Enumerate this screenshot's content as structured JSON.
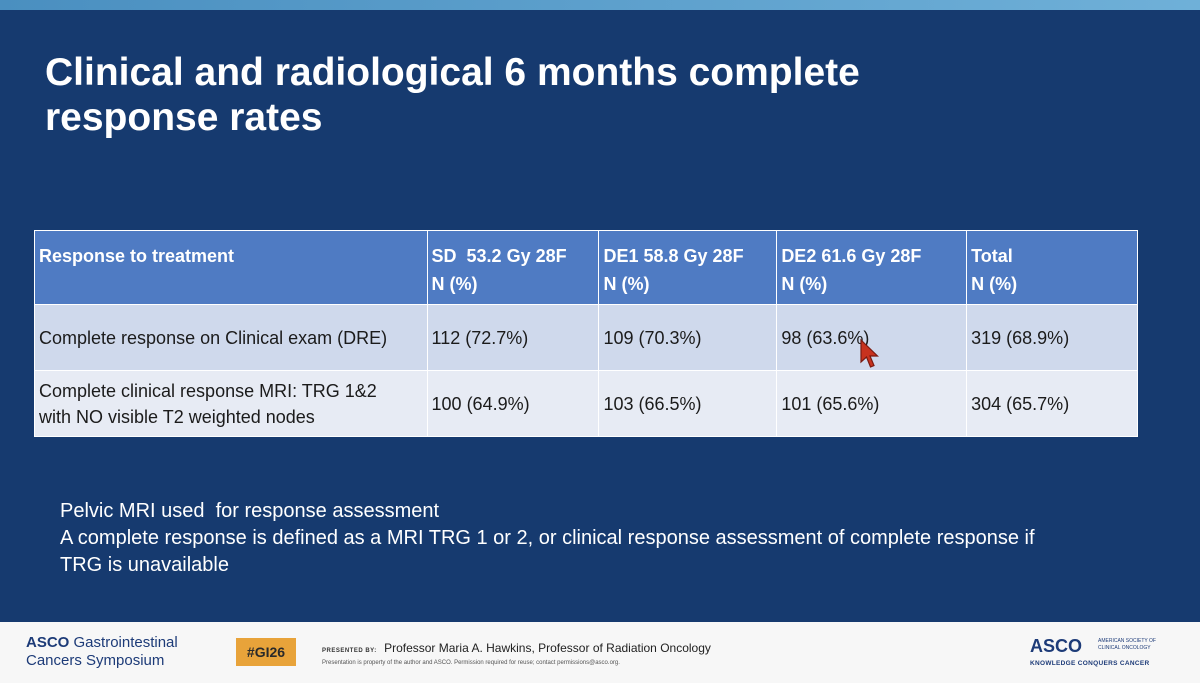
{
  "slide": {
    "title_line1": "Clinical and radiological 6 months complete",
    "title_line2": "response rates"
  },
  "table": {
    "headers": [
      [
        "Response to treatment",
        ""
      ],
      [
        "SD  53.2 Gy 28F",
        "N (%)"
      ],
      [
        "DE1 58.8 Gy 28F",
        "N (%)"
      ],
      [
        "DE2 61.6 Gy 28F",
        "N (%)"
      ],
      [
        "Total",
        "N (%)"
      ]
    ],
    "rows": [
      {
        "label_line1": "Complete response on Clinical exam (DRE)",
        "label_line2": "",
        "cells": [
          "112 (72.7%)",
          "109 (70.3%)",
          "98 (63.6%)",
          "319 (68.9%)"
        ]
      },
      {
        "label_line1": "Complete clinical response MRI: TRG 1&2",
        "label_line2": "with NO visible T2 weighted nodes",
        "cells": [
          "100 (64.9%)",
          "103 (66.5%)",
          "101 (65.6%)",
          "304 (65.7%)"
        ]
      }
    ]
  },
  "notes": {
    "line1": "Pelvic MRI used  for response assessment",
    "line2": "A complete response is defined as a MRI TRG 1 or 2, or clinical response assessment of complete response if",
    "line3": "TRG is unavailable"
  },
  "footer": {
    "logo_left_brand": "ASCO",
    "logo_left_line1": "Gastrointestinal",
    "logo_left_line2": "Cancers Symposium",
    "hashtag": "#GI26",
    "presented_label": "PRESENTED BY:",
    "presenter": "Professor Maria A. Hawkins, Professor of Radiation Oncology",
    "legal": "Presentation is property of the author and ASCO. Permission required for reuse; contact permissions@asco.org.",
    "logo_right_brand": "ASCO",
    "logo_right_society": "AMERICAN SOCIETY OF CLINICAL ONCOLOGY",
    "logo_right_tagline": "KNOWLEDGE CONQUERS CANCER"
  },
  "colors": {
    "slide_bg": "#163a6f",
    "table_header": "#4f7bc3",
    "row1": "#cfd9ec",
    "row2": "#e7ebf4",
    "hashtag_bg": "#e8a33a",
    "cursor": "#c8321e"
  },
  "icons": {
    "cursor": "pointer-cursor-icon"
  }
}
